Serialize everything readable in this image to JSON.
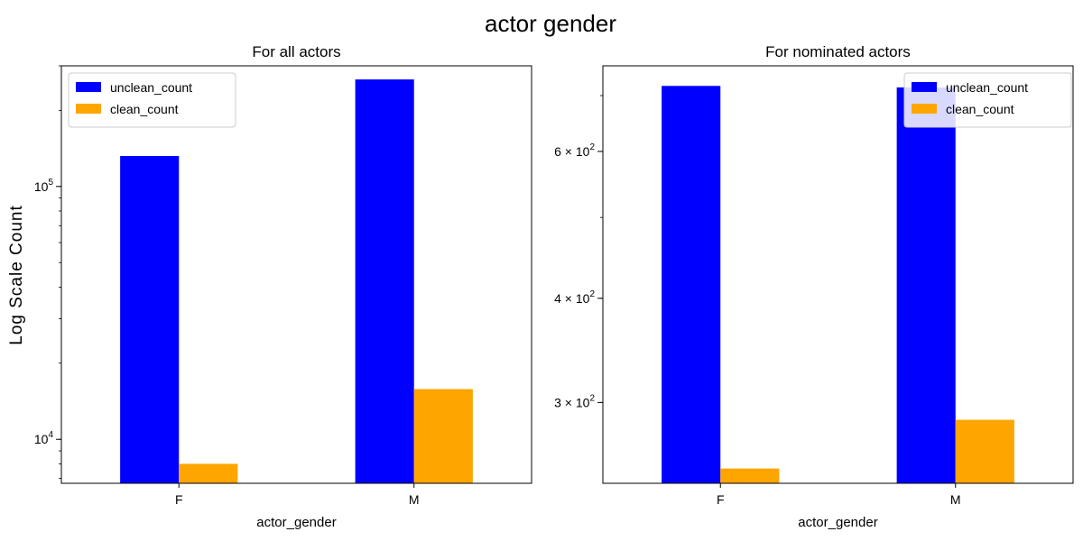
{
  "figure": {
    "title": "actor gender",
    "ylabel": "Log Scale Count"
  },
  "chart_data": [
    {
      "type": "bar",
      "title": "For all actors",
      "xlabel": "actor_gender",
      "ylabel": "Log Scale Count",
      "yscale": "log",
      "ylim": [
        6700,
        300000
      ],
      "categories": [
        "F",
        "M"
      ],
      "series": [
        {
          "name": "unclean_count",
          "color": "#0000ff",
          "values": [
            132000,
            265000
          ]
        },
        {
          "name": "clean_count",
          "color": "#ffa500",
          "values": [
            8000,
            15800
          ]
        }
      ],
      "yticks": [
        {
          "value": 100000,
          "base": "10",
          "exp": "5"
        },
        {
          "value": 10000,
          "base": "10",
          "exp": "4"
        }
      ],
      "grid": false,
      "legend": "top-left"
    },
    {
      "type": "bar",
      "title": "For nominated actors",
      "xlabel": "actor_gender",
      "ylabel": "",
      "yscale": "log",
      "ylim": [
        240,
        760
      ],
      "categories": [
        "F",
        "M"
      ],
      "series": [
        {
          "name": "unclean_count",
          "color": "#0000ff",
          "values": [
            719,
            716
          ]
        },
        {
          "name": "clean_count",
          "color": "#ffa500",
          "values": [
            250,
            286
          ]
        }
      ],
      "yticks": [
        {
          "value": 600,
          "coef": "6",
          "base": "10",
          "exp": "2"
        },
        {
          "value": 400,
          "coef": "4",
          "base": "10",
          "exp": "2"
        },
        {
          "value": 300,
          "coef": "3",
          "base": "10",
          "exp": "2"
        }
      ],
      "grid": false,
      "legend": "top-right"
    }
  ]
}
